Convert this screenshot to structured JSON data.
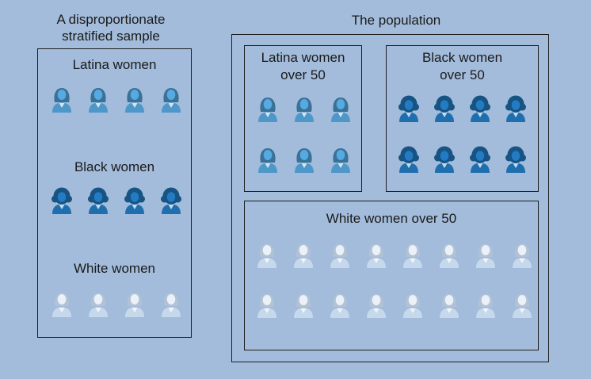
{
  "sample": {
    "title_line1": "A disproportionate",
    "title_line2": "stratified sample",
    "groups": [
      {
        "label": "Latina women",
        "count": 4,
        "type": "latina"
      },
      {
        "label": "Black women",
        "count": 4,
        "type": "black"
      },
      {
        "label": "White women",
        "count": 4,
        "type": "white"
      }
    ]
  },
  "population": {
    "title": "The population",
    "groups": [
      {
        "label_line1": "Latina women",
        "label_line2": "over 50",
        "rows": 2,
        "per_row": 3,
        "type": "latina"
      },
      {
        "label_line1": "Black women",
        "label_line2": "over 50",
        "rows": 2,
        "per_row": 4,
        "type": "black"
      },
      {
        "label": "White women over 50",
        "rows": 2,
        "per_row": 8,
        "type": "white"
      }
    ]
  },
  "colors": {
    "background": "#a3bcdb",
    "latina": "#4d97c9",
    "black": "#1f6fae",
    "white": "#c6d8ec"
  },
  "icons": {
    "latina": "latina-woman-icon",
    "black": "black-woman-icon",
    "white": "white-woman-icon"
  }
}
